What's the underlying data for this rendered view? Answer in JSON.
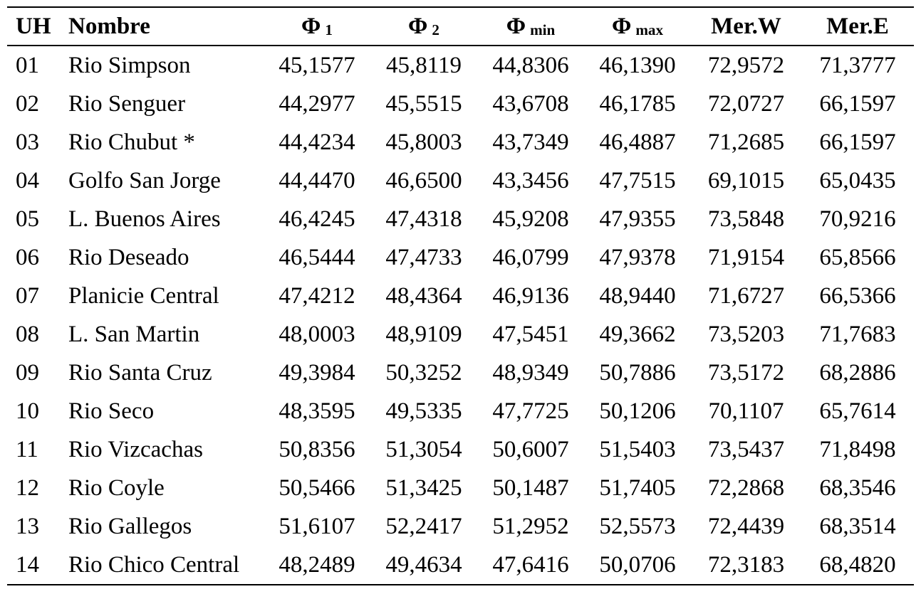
{
  "page": {
    "background_color": "#ffffff",
    "text_color": "#000000",
    "rule_color": "#000000"
  },
  "table": {
    "columns": [
      {
        "label": "UH",
        "sub": ""
      },
      {
        "label": "Nombre",
        "sub": ""
      },
      {
        "label": "Φ",
        "sub": "1"
      },
      {
        "label": "Φ",
        "sub": "2"
      },
      {
        "label": "Φ",
        "sub": "min"
      },
      {
        "label": "Φ",
        "sub": "max"
      },
      {
        "label": "Mer.W",
        "sub": ""
      },
      {
        "label": "Mer.E",
        "sub": ""
      }
    ],
    "rows": [
      [
        "01",
        "Rio Simpson",
        "45,1577",
        "45,8119",
        "44,8306",
        "46,1390",
        "72,9572",
        "71,3777"
      ],
      [
        "02",
        "Rio Senguer",
        "44,2977",
        "45,5515",
        "43,6708",
        "46,1785",
        "72,0727",
        "66,1597"
      ],
      [
        "03",
        "Rio Chubut *",
        "44,4234",
        "45,8003",
        "43,7349",
        "46,4887",
        "71,2685",
        "66,1597"
      ],
      [
        "04",
        "Golfo San Jorge",
        "44,4470",
        "46,6500",
        "43,3456",
        "47,7515",
        "69,1015",
        "65,0435"
      ],
      [
        "05",
        "L. Buenos Aires",
        "46,4245",
        "47,4318",
        "45,9208",
        "47,9355",
        "73,5848",
        "70,9216"
      ],
      [
        "06",
        "Rio Deseado",
        "46,5444",
        "47,4733",
        "46,0799",
        "47,9378",
        "71,9154",
        "65,8566"
      ],
      [
        "07",
        "Planicie Central",
        "47,4212",
        "48,4364",
        "46,9136",
        "48,9440",
        "71,6727",
        "66,5366"
      ],
      [
        "08",
        "L. San Martin",
        "48,0003",
        "48,9109",
        "47,5451",
        "49,3662",
        "73,5203",
        "71,7683"
      ],
      [
        "09",
        "Rio Santa Cruz",
        "49,3984",
        "50,3252",
        "48,9349",
        "50,7886",
        "73,5172",
        "68,2886"
      ],
      [
        "10",
        "Rio Seco",
        "48,3595",
        "49,5335",
        "47,7725",
        "50,1206",
        "70,1107",
        "65,7614"
      ],
      [
        "11",
        "Rio Vizcachas",
        "50,8356",
        "51,3054",
        "50,6007",
        "51,5403",
        "73,5437",
        "71,8498"
      ],
      [
        "12",
        "Rio Coyle",
        "50,5466",
        "51,3425",
        "50,1487",
        "51,7405",
        "72,2868",
        "68,3546"
      ],
      [
        "13",
        "Rio Gallegos",
        "51,6107",
        "52,2417",
        "51,2952",
        "52,5573",
        "72,4439",
        "68,3514"
      ],
      [
        "14",
        "Rio Chico Central",
        "48,2489",
        "49,4634",
        "47,6416",
        "50,0706",
        "72,3183",
        "68,4820"
      ]
    ]
  }
}
